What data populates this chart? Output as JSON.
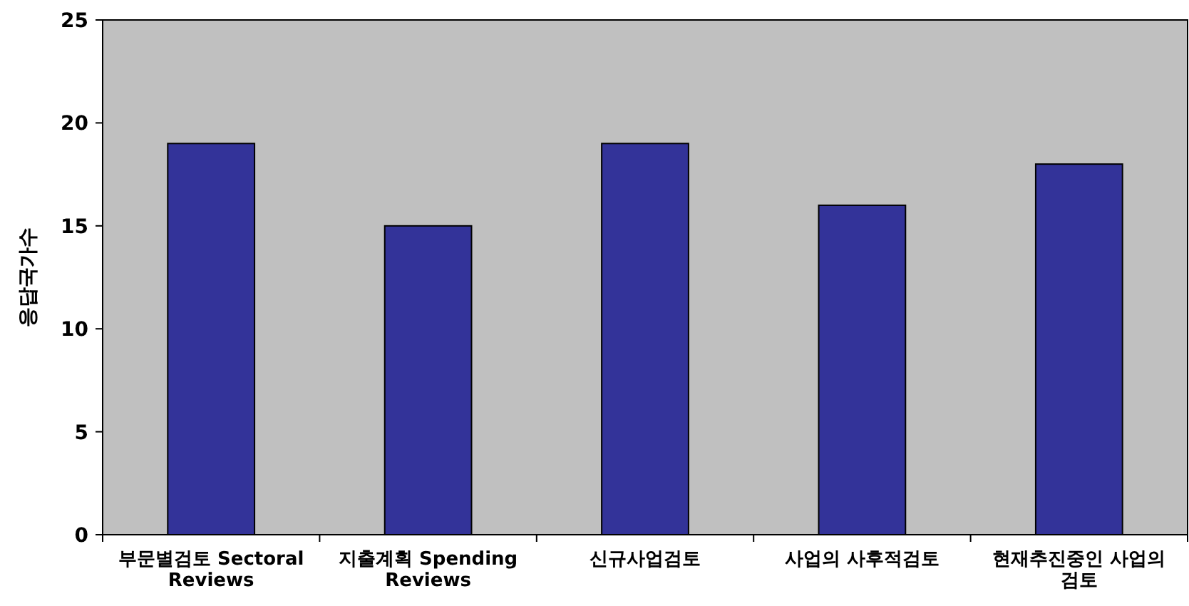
{
  "chart_data": {
    "type": "bar",
    "ylabel": "응답국가수",
    "categories": [
      "부문별검토 Sectoral Reviews",
      "지출계획 Spending Reviews",
      "신규사업검토",
      "사업의 사후적검토",
      "현재추진중인 사업의 검토"
    ],
    "values": [
      19,
      15,
      19,
      16,
      18
    ],
    "color": "#333399",
    "ylim": [
      0,
      25
    ],
    "yticks": [
      0,
      5,
      10,
      15,
      20,
      25
    ]
  }
}
